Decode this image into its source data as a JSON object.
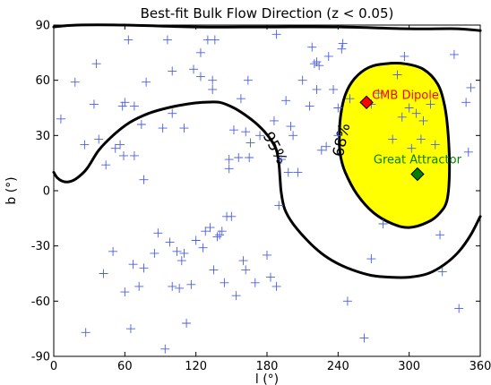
{
  "chart_data": {
    "type": "scatter",
    "title": "Best-fit Bulk Flow Direction (z < 0.05)",
    "xlabel": "l (°)",
    "ylabel": "b (°)",
    "xlim": [
      0,
      360
    ],
    "ylim": [
      -90,
      90
    ],
    "xticks": [
      0,
      60,
      120,
      180,
      240,
      300,
      360
    ],
    "yticks": [
      -90,
      -60,
      -30,
      0,
      30,
      60,
      90
    ],
    "grid": false,
    "colors": {
      "points": "#4a5ee8",
      "region68": "#ffff00",
      "contour": "#000000",
      "cmb": "#ff0000",
      "great_attractor": "#008000"
    },
    "sample_points": [
      [
        6,
        39
      ],
      [
        18,
        59
      ],
      [
        26,
        25
      ],
      [
        27,
        -77
      ],
      [
        34,
        47
      ],
      [
        36,
        69
      ],
      [
        38,
        28
      ],
      [
        42,
        -45
      ],
      [
        44,
        14
      ],
      [
        50,
        -33
      ],
      [
        52,
        23
      ],
      [
        56,
        25
      ],
      [
        58,
        46
      ],
      [
        59,
        19
      ],
      [
        60,
        48
      ],
      [
        60,
        -55
      ],
      [
        63,
        82
      ],
      [
        65,
        -75
      ],
      [
        67,
        -40
      ],
      [
        68,
        46
      ],
      [
        68,
        19
      ],
      [
        72,
        -52
      ],
      [
        74,
        36
      ],
      [
        76,
        6
      ],
      [
        76,
        -42
      ],
      [
        78,
        59
      ],
      [
        85,
        -34
      ],
      [
        88,
        -23
      ],
      [
        92,
        34
      ],
      [
        94,
        -86
      ],
      [
        96,
        82
      ],
      [
        98,
        -28
      ],
      [
        100,
        65
      ],
      [
        100,
        42
      ],
      [
        100,
        -52
      ],
      [
        104,
        -33
      ],
      [
        106,
        -53
      ],
      [
        108,
        -38
      ],
      [
        110,
        34
      ],
      [
        110,
        -34
      ],
      [
        112,
        -72
      ],
      [
        116,
        -51
      ],
      [
        118,
        66
      ],
      [
        120,
        -27
      ],
      [
        124,
        75
      ],
      [
        124,
        62
      ],
      [
        126,
        -31
      ],
      [
        128,
        -22
      ],
      [
        130,
        82
      ],
      [
        132,
        -20
      ],
      [
        134,
        60
      ],
      [
        134,
        55
      ],
      [
        135,
        -43
      ],
      [
        136,
        82
      ],
      [
        138,
        -25
      ],
      [
        140,
        -24
      ],
      [
        142,
        -22
      ],
      [
        144,
        -50
      ],
      [
        146,
        -14
      ],
      [
        148,
        12
      ],
      [
        148,
        17
      ],
      [
        150,
        -14
      ],
      [
        152,
        33
      ],
      [
        154,
        -57
      ],
      [
        156,
        18
      ],
      [
        158,
        50
      ],
      [
        160,
        -38
      ],
      [
        162,
        32
      ],
      [
        162,
        -43
      ],
      [
        164,
        60
      ],
      [
        165,
        18
      ],
      [
        166,
        26
      ],
      [
        170,
        -50
      ],
      [
        174,
        30
      ],
      [
        180,
        -35
      ],
      [
        183,
        -47
      ],
      [
        186,
        38
      ],
      [
        188,
        -52
      ],
      [
        188,
        85
      ],
      [
        190,
        -8
      ],
      [
        192,
        17
      ],
      [
        196,
        49
      ],
      [
        198,
        10
      ],
      [
        200,
        35
      ],
      [
        202,
        30
      ],
      [
        206,
        10
      ],
      [
        210,
        60
      ],
      [
        216,
        46
      ],
      [
        218,
        78
      ],
      [
        220,
        69
      ],
      [
        222,
        55
      ],
      [
        222,
        70
      ],
      [
        224,
        68
      ],
      [
        226,
        22
      ],
      [
        230,
        24
      ],
      [
        232,
        73
      ],
      [
        236,
        55
      ],
      [
        240,
        45
      ],
      [
        240,
        30
      ],
      [
        243,
        77
      ],
      [
        244,
        80
      ],
      [
        248,
        -60
      ],
      [
        250,
        50
      ],
      [
        262,
        -80
      ],
      [
        268,
        -37
      ],
      [
        268,
        47
      ],
      [
        274,
        53
      ],
      [
        278,
        -18
      ],
      [
        286,
        28
      ],
      [
        290,
        63
      ],
      [
        294,
        40
      ],
      [
        296,
        73
      ],
      [
        300,
        45
      ],
      [
        302,
        23
      ],
      [
        306,
        42
      ],
      [
        310,
        28
      ],
      [
        312,
        38
      ],
      [
        318,
        47
      ],
      [
        322,
        25
      ],
      [
        326,
        -24
      ],
      [
        328,
        -44
      ],
      [
        338,
        74
      ],
      [
        342,
        -64
      ],
      [
        348,
        48
      ],
      [
        350,
        21
      ],
      [
        352,
        56
      ]
    ],
    "series": [
      {
        "name": "CMB Dipole",
        "l": 264,
        "b": 48
      },
      {
        "name": "Great Attractor",
        "l": 307,
        "b": 9
      }
    ],
    "contours": [
      {
        "label": "68%",
        "outline": [
          [
            241,
            27
          ],
          [
            242,
            40
          ],
          [
            246,
            52
          ],
          [
            254,
            61
          ],
          [
            266,
            67
          ],
          [
            280,
            69
          ],
          [
            296,
            69
          ],
          [
            312,
            66
          ],
          [
            324,
            58
          ],
          [
            330,
            46
          ],
          [
            333,
            30
          ],
          [
            334,
            10
          ],
          [
            332,
            -5
          ],
          [
            326,
            -12
          ],
          [
            316,
            -17
          ],
          [
            300,
            -20
          ],
          [
            286,
            -18
          ],
          [
            270,
            -12
          ],
          [
            256,
            -2
          ],
          [
            246,
            10
          ],
          [
            242,
            19
          ]
        ]
      },
      {
        "label": "95%",
        "segments": [
          [
            [
              0,
              10
            ],
            [
              3,
              7
            ],
            [
              8,
              5
            ],
            [
              14,
              5
            ],
            [
              20,
              7
            ],
            [
              28,
              12
            ],
            [
              38,
              22
            ],
            [
              50,
              30
            ],
            [
              64,
              37
            ],
            [
              80,
              42
            ],
            [
              96,
              45
            ],
            [
              112,
              47
            ],
            [
              126,
              48
            ],
            [
              140,
              48
            ],
            [
              152,
              45
            ],
            [
              162,
              41
            ],
            [
              170,
              37
            ],
            [
              178,
              32
            ],
            [
              184,
              27
            ],
            [
              188,
              22
            ],
            [
              190,
              15
            ],
            [
              191,
              7
            ],
            [
              192,
              -1
            ],
            [
              195,
              -10
            ],
            [
              202,
              -18
            ],
            [
              214,
              -27
            ],
            [
              226,
              -34
            ],
            [
              238,
              -39
            ],
            [
              252,
              -43
            ],
            [
              268,
              -46
            ],
            [
              284,
              -47
            ],
            [
              300,
              -47
            ],
            [
              316,
              -45
            ],
            [
              330,
              -40
            ],
            [
              342,
              -33
            ],
            [
              352,
              -24
            ],
            [
              360,
              -14
            ]
          ],
          [
            [
              0,
              89
            ],
            [
              20,
              90
            ],
            [
              60,
              90
            ],
            [
              120,
              89
            ],
            [
              180,
              89
            ],
            [
              240,
              89
            ],
            [
              300,
              88
            ],
            [
              340,
              88
            ],
            [
              360,
              87
            ]
          ]
        ]
      }
    ]
  }
}
